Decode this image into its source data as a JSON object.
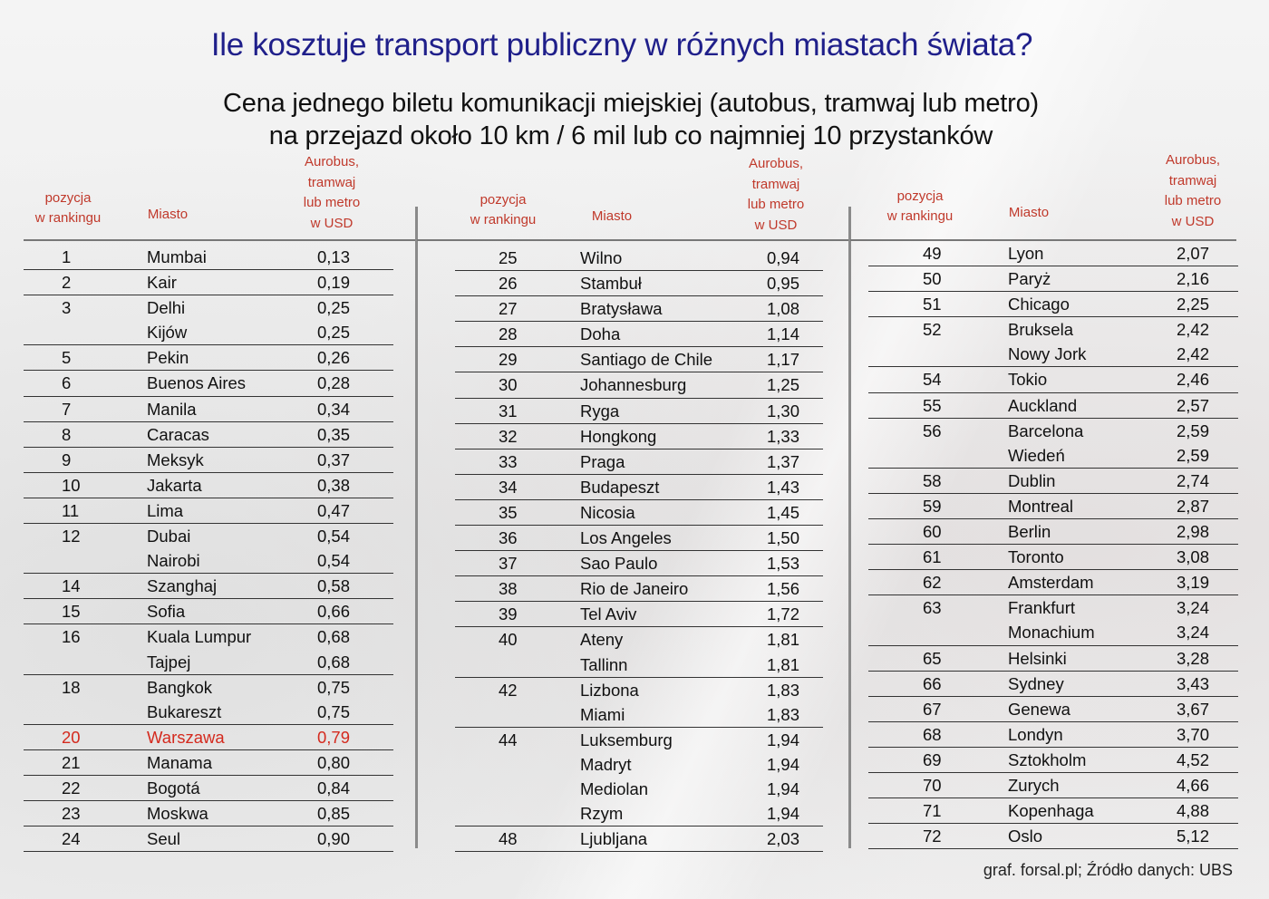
{
  "title": "Ile kosztuje transport publiczny w różnych miastach świata?",
  "subtitle_line1": "Cena jednego biletu komunikacji miejskiej (autobus, tramwaj lub metro)",
  "subtitle_line2": "na przejazd około 10 km / 6 mil lub co najmniej 10 przystanków",
  "headers": {
    "rank_line1": "pozycja",
    "rank_line2": "w rankingu",
    "city": "Miasto",
    "price_line1": "Aurobus,",
    "price_line2": "tramwaj",
    "price_line3": "lub metro",
    "price_line4": "w USD"
  },
  "colors": {
    "title": "#1f1f8a",
    "header": "#c0392b",
    "highlight": "#d42a1e"
  },
  "highlight_city": "Warszawa",
  "columns": [
    {
      "groups": [
        {
          "rank": "1",
          "rows": [
            {
              "city": "Mumbai",
              "price": "0,13"
            }
          ]
        },
        {
          "rank": "2",
          "rows": [
            {
              "city": "Kair",
              "price": "0,19"
            }
          ]
        },
        {
          "rank": "3",
          "rows": [
            {
              "city": "Delhi",
              "price": "0,25"
            },
            {
              "city": "Kijów",
              "price": "0,25"
            }
          ]
        },
        {
          "rank": "5",
          "rows": [
            {
              "city": "Pekin",
              "price": "0,26"
            }
          ]
        },
        {
          "rank": "6",
          "rows": [
            {
              "city": "Buenos Aires",
              "price": "0,28"
            }
          ]
        },
        {
          "rank": "7",
          "rows": [
            {
              "city": "Manila",
              "price": "0,34"
            }
          ]
        },
        {
          "rank": "8",
          "rows": [
            {
              "city": "Caracas",
              "price": "0,35"
            }
          ]
        },
        {
          "rank": "9",
          "rows": [
            {
              "city": "Meksyk",
              "price": "0,37"
            }
          ]
        },
        {
          "rank": "10",
          "rows": [
            {
              "city": "Jakarta",
              "price": "0,38"
            }
          ]
        },
        {
          "rank": "11",
          "rows": [
            {
              "city": "Lima",
              "price": "0,47"
            }
          ]
        },
        {
          "rank": "12",
          "rows": [
            {
              "city": "Dubai",
              "price": "0,54"
            },
            {
              "city": "Nairobi",
              "price": "0,54"
            }
          ]
        },
        {
          "rank": "14",
          "rows": [
            {
              "city": "Szanghaj",
              "price": "0,58"
            }
          ]
        },
        {
          "rank": "15",
          "rows": [
            {
              "city": "Sofia",
              "price": "0,66"
            }
          ]
        },
        {
          "rank": "16",
          "rows": [
            {
              "city": "Kuala Lumpur",
              "price": "0,68"
            },
            {
              "city": "Tajpej",
              "price": "0,68"
            }
          ]
        },
        {
          "rank": "18",
          "rows": [
            {
              "city": "Bangkok",
              "price": "0,75"
            },
            {
              "city": "Bukareszt",
              "price": "0,75"
            }
          ]
        },
        {
          "rank": "20",
          "rows": [
            {
              "city": "Warszawa",
              "price": "0,79"
            }
          ],
          "highlight": true
        },
        {
          "rank": "21",
          "rows": [
            {
              "city": "Manama",
              "price": "0,80"
            }
          ]
        },
        {
          "rank": "22",
          "rows": [
            {
              "city": "Bogotá",
              "price": "0,84"
            }
          ]
        },
        {
          "rank": "23",
          "rows": [
            {
              "city": "Moskwa",
              "price": "0,85"
            }
          ]
        },
        {
          "rank": "24",
          "rows": [
            {
              "city": "Seul",
              "price": "0,90"
            }
          ]
        }
      ]
    },
    {
      "groups": [
        {
          "rank": "25",
          "rows": [
            {
              "city": "Wilno",
              "price": "0,94"
            }
          ]
        },
        {
          "rank": "26",
          "rows": [
            {
              "city": "Stambuł",
              "price": "0,95"
            }
          ]
        },
        {
          "rank": "27",
          "rows": [
            {
              "city": "Bratysława",
              "price": "1,08"
            }
          ]
        },
        {
          "rank": "28",
          "rows": [
            {
              "city": "Doha",
              "price": "1,14"
            }
          ]
        },
        {
          "rank": "29",
          "rows": [
            {
              "city": "Santiago de Chile",
              "price": "1,17"
            }
          ]
        },
        {
          "rank": "30",
          "rows": [
            {
              "city": "Johannesburg",
              "price": "1,25"
            }
          ]
        },
        {
          "rank": "31",
          "rows": [
            {
              "city": "Ryga",
              "price": "1,30"
            }
          ]
        },
        {
          "rank": "32",
          "rows": [
            {
              "city": "Hongkong",
              "price": "1,33"
            }
          ]
        },
        {
          "rank": "33",
          "rows": [
            {
              "city": "Praga",
              "price": "1,37"
            }
          ]
        },
        {
          "rank": "34",
          "rows": [
            {
              "city": "Budapeszt",
              "price": "1,43"
            }
          ]
        },
        {
          "rank": "35",
          "rows": [
            {
              "city": "Nicosia",
              "price": "1,45"
            }
          ]
        },
        {
          "rank": "36",
          "rows": [
            {
              "city": "Los Angeles",
              "price": "1,50"
            }
          ]
        },
        {
          "rank": "37",
          "rows": [
            {
              "city": "Sao Paulo",
              "price": "1,53"
            }
          ]
        },
        {
          "rank": "38",
          "rows": [
            {
              "city": "Rio de Janeiro",
              "price": "1,56"
            }
          ]
        },
        {
          "rank": "39",
          "rows": [
            {
              "city": "Tel Aviv",
              "price": "1,72"
            }
          ]
        },
        {
          "rank": "40",
          "rows": [
            {
              "city": "Ateny",
              "price": "1,81"
            },
            {
              "city": "Tallinn",
              "price": "1,81"
            }
          ]
        },
        {
          "rank": "42",
          "rows": [
            {
              "city": "Lizbona",
              "price": "1,83"
            },
            {
              "city": "Miami",
              "price": "1,83"
            }
          ]
        },
        {
          "rank": "44",
          "rows": [
            {
              "city": "Luksemburg",
              "price": "1,94"
            },
            {
              "city": "Madryt",
              "price": "1,94"
            },
            {
              "city": "Mediolan",
              "price": "1,94"
            },
            {
              "city": "Rzym",
              "price": "1,94"
            }
          ]
        },
        {
          "rank": "48",
          "rows": [
            {
              "city": "Ljubljana",
              "price": "2,03"
            }
          ]
        }
      ]
    },
    {
      "groups": [
        {
          "rank": "49",
          "rows": [
            {
              "city": "Lyon",
              "price": "2,07"
            }
          ]
        },
        {
          "rank": "50",
          "rows": [
            {
              "city": "Paryż",
              "price": "2,16"
            }
          ]
        },
        {
          "rank": "51",
          "rows": [
            {
              "city": "Chicago",
              "price": "2,25"
            }
          ]
        },
        {
          "rank": "52",
          "rows": [
            {
              "city": "Bruksela",
              "price": "2,42"
            },
            {
              "city": "Nowy Jork",
              "price": "2,42"
            }
          ]
        },
        {
          "rank": "54",
          "rows": [
            {
              "city": "Tokio",
              "price": "2,46"
            }
          ]
        },
        {
          "rank": "55",
          "rows": [
            {
              "city": "Auckland",
              "price": "2,57"
            }
          ]
        },
        {
          "rank": "56",
          "rows": [
            {
              "city": "Barcelona",
              "price": "2,59"
            },
            {
              "city": "Wiedeń",
              "price": "2,59"
            }
          ]
        },
        {
          "rank": "58",
          "rows": [
            {
              "city": "Dublin",
              "price": "2,74"
            }
          ]
        },
        {
          "rank": "59",
          "rows": [
            {
              "city": "Montreal",
              "price": "2,87"
            }
          ]
        },
        {
          "rank": "60",
          "rows": [
            {
              "city": "Berlin",
              "price": "2,98"
            }
          ]
        },
        {
          "rank": "61",
          "rows": [
            {
              "city": "Toronto",
              "price": "3,08"
            }
          ]
        },
        {
          "rank": "62",
          "rows": [
            {
              "city": "Amsterdam",
              "price": "3,19"
            }
          ]
        },
        {
          "rank": "63",
          "rows": [
            {
              "city": "Frankfurt",
              "price": "3,24"
            },
            {
              "city": "Monachium",
              "price": "3,24"
            }
          ]
        },
        {
          "rank": "65",
          "rows": [
            {
              "city": "Helsinki",
              "price": "3,28"
            }
          ]
        },
        {
          "rank": "66",
          "rows": [
            {
              "city": "Sydney",
              "price": "3,43"
            }
          ]
        },
        {
          "rank": "67",
          "rows": [
            {
              "city": "Genewa",
              "price": "3,67"
            }
          ]
        },
        {
          "rank": "68",
          "rows": [
            {
              "city": "Londyn",
              "price": "3,70"
            }
          ]
        },
        {
          "rank": "69",
          "rows": [
            {
              "city": "Sztokholm",
              "price": "4,52"
            }
          ]
        },
        {
          "rank": "70",
          "rows": [
            {
              "city": "Zurych",
              "price": "4,66"
            }
          ]
        },
        {
          "rank": "71",
          "rows": [
            {
              "city": "Kopenhaga",
              "price": "4,88"
            }
          ]
        },
        {
          "rank": "72",
          "rows": [
            {
              "city": "Oslo",
              "price": "5,12"
            }
          ]
        }
      ]
    }
  ],
  "source": "graf. forsal.pl; Źródło danych: UBS"
}
